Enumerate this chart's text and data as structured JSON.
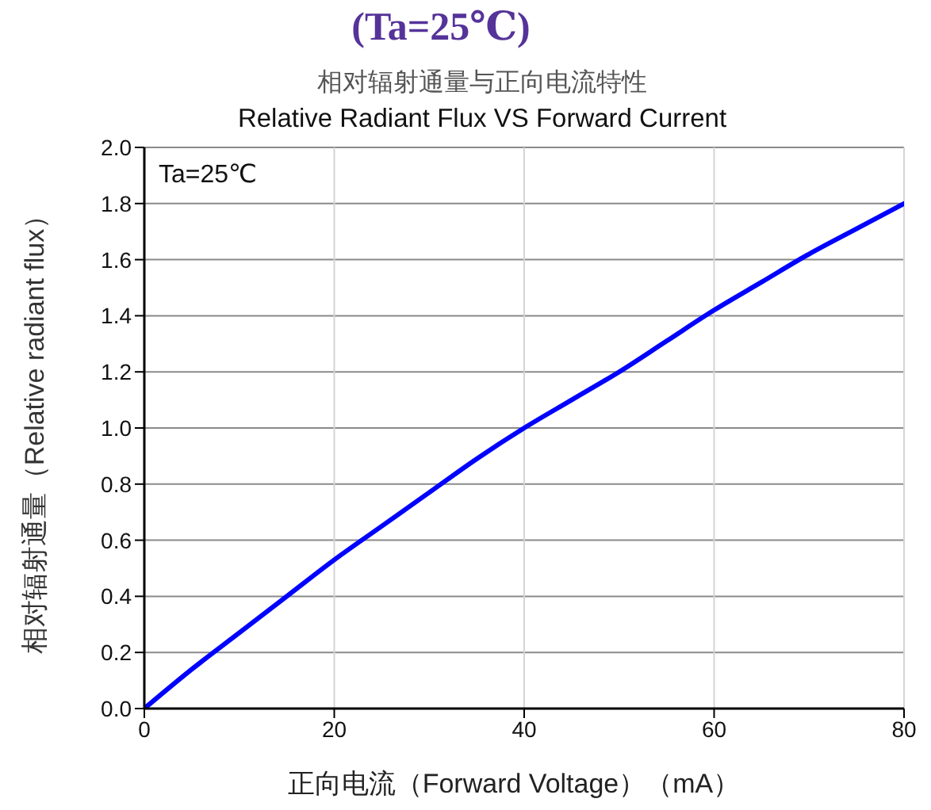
{
  "chart_data": {
    "type": "line",
    "title": "(Ta=25℃)",
    "subtitle": "相对辐射通量与正向电流特性\nRelative Radiant Flux VS Forward Current",
    "xlabel": "正向电流（Forward Voltage）（mA）",
    "ylabel": "相对辐射通量（Relative radiant flux）",
    "annotations": [
      "Ta=25℃"
    ],
    "x": [
      0,
      5,
      10,
      15,
      20,
      25,
      30,
      35,
      40,
      45,
      50,
      55,
      60,
      65,
      70,
      75,
      80
    ],
    "series": [
      {
        "color": "#0000ff",
        "values": [
          0,
          0.14,
          0.27,
          0.4,
          0.53,
          0.65,
          0.77,
          0.89,
          1.0,
          1.1,
          1.2,
          1.31,
          1.42,
          1.52,
          1.62,
          1.71,
          1.8
        ]
      }
    ],
    "xlim": [
      0,
      80
    ],
    "ylim": [
      0,
      2
    ],
    "xticks": [
      0,
      20,
      40,
      60,
      80
    ],
    "yticks": [
      {
        "value": 0,
        "label": "0.0"
      },
      {
        "value": 0.2,
        "label": "0.2"
      },
      {
        "value": 0.4,
        "label": "0.4"
      },
      {
        "value": 0.6,
        "label": "0.6"
      },
      {
        "value": 0.8,
        "label": "0.8"
      },
      {
        "value": 1,
        "label": "1.0"
      },
      {
        "value": 1.2,
        "label": "1.2"
      },
      {
        "value": 1.4,
        "label": "1.4"
      },
      {
        "value": 1.6,
        "label": "1.6"
      },
      {
        "value": 1.8,
        "label": "1.8"
      },
      {
        "value": 2,
        "label": "2.0"
      }
    ],
    "grid": true
  }
}
